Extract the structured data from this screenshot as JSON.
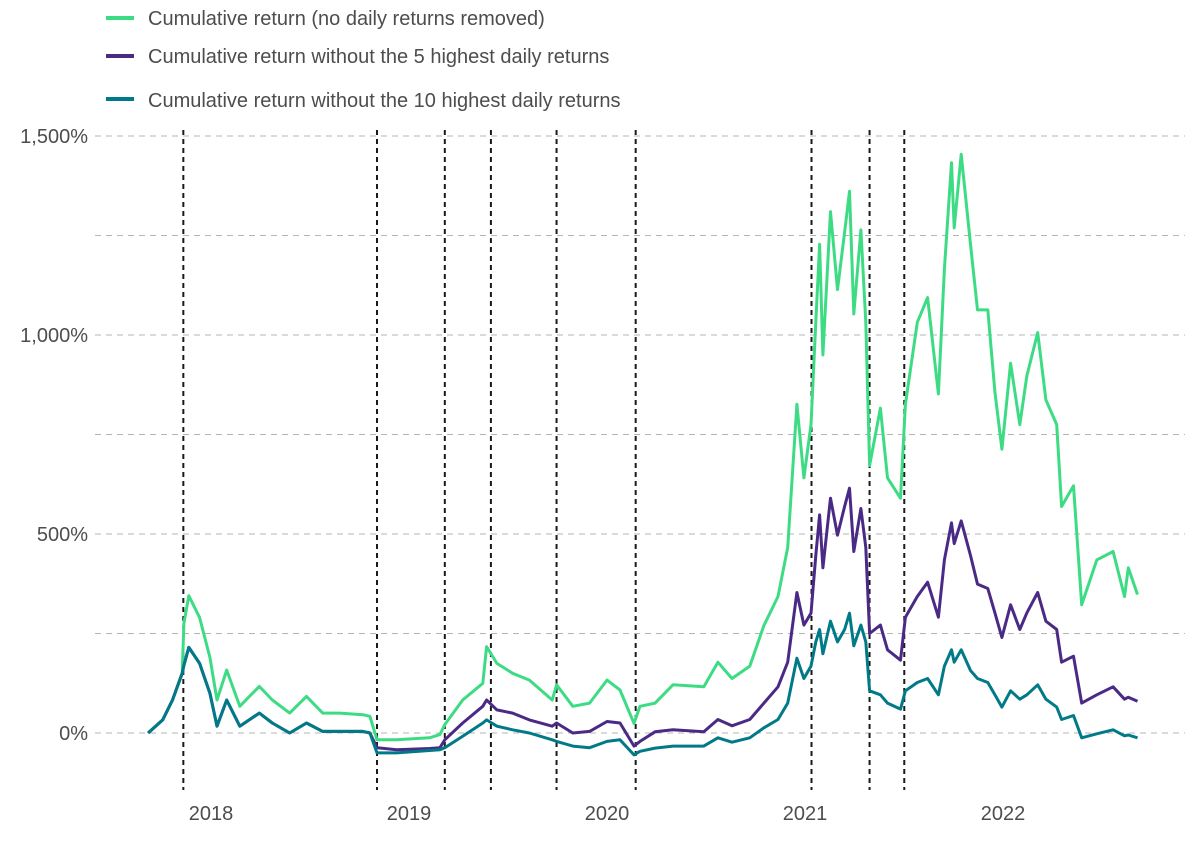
{
  "chart_data": {
    "type": "line",
    "title": "",
    "xlabel": "",
    "ylabel": "",
    "ylim": [
      -150,
      1500
    ],
    "yticks": [
      "0%",
      "500%",
      "1,000%",
      "1,500%"
    ],
    "ytick_values": [
      0,
      500,
      1000,
      1500
    ],
    "grid_values": [
      0,
      250,
      500,
      750,
      1000,
      1250,
      1500
    ],
    "xticks": [
      "2018",
      "2019",
      "2020",
      "2021",
      "2022"
    ],
    "grid": "horizontal dashed",
    "legend_position": "top-left",
    "event_lines": [
      "2017-11-11",
      "2018-11-03",
      "2019-03-08",
      "2019-06-01",
      "2019-09-30",
      "2020-02-23",
      "2021-01-13",
      "2021-04-30",
      "2021-07-03"
    ],
    "dates": [
      "2017-09-07",
      "2017-10-04",
      "2017-10-22",
      "2017-11-09",
      "2017-11-12",
      "2017-11-21",
      "2017-12-11",
      "2017-12-30",
      "2018-01-12",
      "2018-01-30",
      "2018-02-23",
      "2018-03-31",
      "2018-04-24",
      "2018-05-26",
      "2018-06-26",
      "2018-07-26",
      "2018-08-26",
      "2018-10-08",
      "2018-10-21",
      "2018-11-03",
      "2018-12-09",
      "2019-02-08",
      "2019-02-27",
      "2019-03-08",
      "2019-04-10",
      "2019-05-17",
      "2019-05-24",
      "2019-06-12",
      "2019-07-11",
      "2019-08-11",
      "2019-09-22",
      "2019-09-30",
      "2019-10-30",
      "2019-11-30",
      "2020-01-01",
      "2020-01-25",
      "2020-02-20",
      "2020-03-02",
      "2020-03-30",
      "2020-05-02",
      "2020-06-28",
      "2020-07-24",
      "2020-08-19",
      "2020-09-21",
      "2020-10-17",
      "2020-11-12",
      "2020-11-30",
      "2020-12-17",
      "2020-12-30",
      "2021-01-12",
      "2021-01-21",
      "2021-01-28",
      "2021-02-03",
      "2021-02-17",
      "2021-03-02",
      "2021-03-15",
      "2021-03-24",
      "2021-04-01",
      "2021-04-14",
      "2021-04-23",
      "2021-04-30",
      "2021-05-20",
      "2021-06-02",
      "2021-06-26",
      "2021-07-05",
      "2021-07-27",
      "2021-08-15",
      "2021-09-04",
      "2021-09-15",
      "2021-09-28",
      "2021-10-03",
      "2021-10-16",
      "2021-11-02",
      "2021-11-15",
      "2021-12-04",
      "2021-12-17",
      "2021-12-30",
      "2022-01-15",
      "2022-02-01",
      "2022-02-14",
      "2022-03-06",
      "2022-03-21",
      "2022-04-10",
      "2022-04-19",
      "2022-05-11",
      "2022-05-26",
      "2022-06-23",
      "2022-07-23",
      "2022-08-13",
      "2022-08-20",
      "2022-09-06"
    ],
    "series": [
      {
        "name": "Cumulative return (no daily returns removed)",
        "color": "#3ddc84",
        "values": [
          0,
          33,
          83,
          150,
          275,
          345,
          290,
          190,
          83,
          158,
          67,
          117,
          83,
          50,
          92,
          50,
          50,
          46,
          42,
          -17,
          -17,
          -12,
          -4,
          21,
          83,
          125,
          217,
          175,
          150,
          133,
          83,
          121,
          67,
          75,
          133,
          108,
          24,
          67,
          75,
          121,
          116,
          178,
          137,
          168,
          270,
          343,
          466,
          826,
          641,
          775,
          1032,
          1228,
          950,
          1310,
          1114,
          1258,
          1361,
          1053,
          1264,
          1032,
          672,
          816,
          641,
          590,
          826,
          1032,
          1094,
          852,
          1166,
          1433,
          1269,
          1454,
          1228,
          1063,
          1063,
          857,
          713,
          929,
          775,
          898,
          1006,
          837,
          775,
          569,
          621,
          322,
          435,
          456,
          343,
          415,
          348
        ]
      },
      {
        "name": "Cumulative return without the 5 highest daily returns",
        "color": "#4b2a86",
        "values": [
          0,
          33,
          83,
          150,
          170,
          215,
          175,
          100,
          17,
          83,
          17,
          50,
          25,
          0,
          25,
          4,
          4,
          4,
          0,
          -37,
          -42,
          -39,
          -37,
          -17,
          25,
          67,
          83,
          58,
          50,
          33,
          17,
          25,
          0,
          4,
          29,
          25,
          -33,
          -21,
          3,
          8,
          3,
          34,
          18,
          34,
          75,
          116,
          178,
          353,
          271,
          301,
          446,
          548,
          415,
          590,
          497,
          569,
          615,
          456,
          564,
          466,
          250,
          271,
          209,
          183,
          291,
          343,
          379,
          291,
          435,
          528,
          476,
          533,
          446,
          374,
          363,
          302,
          240,
          322,
          260,
          302,
          353,
          281,
          260,
          178,
          193,
          75,
          96,
          116,
          85,
          90,
          80
        ]
      },
      {
        "name": "Cumulative return without the 10 highest daily returns",
        "color": "#007a87",
        "values": [
          0,
          33,
          83,
          150,
          170,
          215,
          175,
          100,
          17,
          83,
          17,
          50,
          25,
          0,
          25,
          4,
          4,
          4,
          0,
          -50,
          -50,
          -44,
          -42,
          -37,
          -8,
          25,
          33,
          17,
          8,
          0,
          -17,
          -21,
          -33,
          -37,
          -21,
          -17,
          -55,
          -46,
          -38,
          -33,
          -33,
          -12,
          -23,
          -12,
          13,
          34,
          75,
          188,
          137,
          168,
          229,
          260,
          199,
          281,
          229,
          260,
          301,
          219,
          271,
          229,
          106,
          96,
          75,
          60,
          106,
          127,
          137,
          96,
          168,
          209,
          178,
          209,
          157,
          137,
          127,
          96,
          65,
          106,
          85,
          96,
          121,
          85,
          65,
          34,
          44,
          -12,
          -2,
          8,
          -7,
          -5,
          -12
        ]
      }
    ]
  }
}
